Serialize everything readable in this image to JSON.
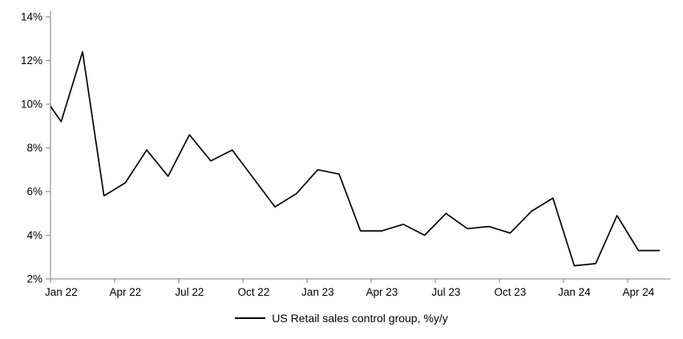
{
  "legend": {
    "label": "US Retail sales control group, %y/y"
  },
  "chart_data": {
    "type": "line",
    "title": "",
    "xlabel": "",
    "ylabel": "",
    "series_name": "US Retail sales control group, %y/y",
    "categories": [
      "Dec 21",
      "Jan 22",
      "Feb 22",
      "Mar 22",
      "Apr 22",
      "May 22",
      "Jun 22",
      "Jul 22",
      "Aug 22",
      "Sep 22",
      "Oct 22",
      "Nov 22",
      "Dec 22",
      "Jan 23",
      "Feb 23",
      "Mar 23",
      "Apr 23",
      "May 23",
      "Jun 23",
      "Jul 23",
      "Aug 23",
      "Sep 23",
      "Oct 23",
      "Nov 23",
      "Dec 23",
      "Jan 24",
      "Feb 24",
      "Mar 24",
      "Apr 24",
      "May 24"
    ],
    "values": [
      10.6,
      9.2,
      12.4,
      5.8,
      6.4,
      7.9,
      6.7,
      8.6,
      7.4,
      7.9,
      6.6,
      5.3,
      5.9,
      7.0,
      6.8,
      4.2,
      4.2,
      4.5,
      4.0,
      5.0,
      4.3,
      4.4,
      4.1,
      5.1,
      5.7,
      2.6,
      2.7,
      4.9,
      3.3,
      3.3
    ],
    "first_point_clipped_at_left_edge": true,
    "ylim": [
      2,
      14
    ],
    "ytick_step": 2,
    "ytick_suffix": "%",
    "x_tick_labels": [
      "Jan 22",
      "Apr 22",
      "Jul 22",
      "Oct 22",
      "Jan 23",
      "Apr 23",
      "Jul 23",
      "Oct 23",
      "Jan 24",
      "Apr 24"
    ],
    "x_tick_label_indices": [
      1,
      4,
      7,
      10,
      13,
      16,
      19,
      22,
      25,
      28
    ],
    "grid": false,
    "legend_position": "bottom-center",
    "line_color": "#000000",
    "axis_color": "#999999",
    "background_color": "#ffffff"
  }
}
